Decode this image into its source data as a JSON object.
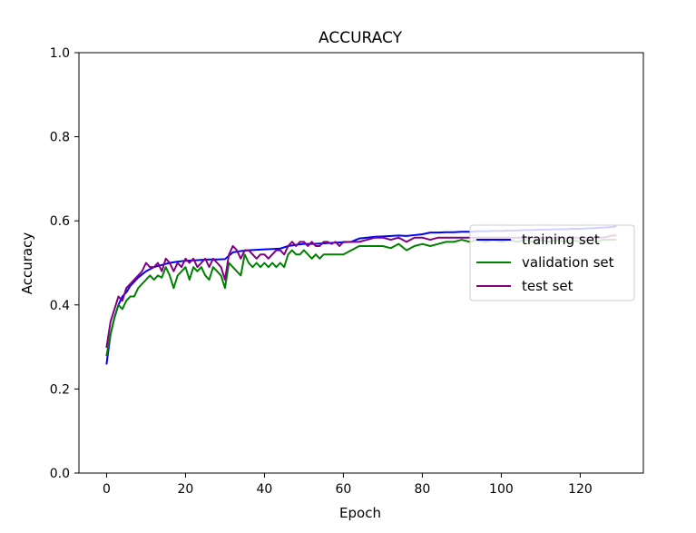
{
  "chart_data": {
    "type": "line",
    "title": "ACCURACY",
    "xlabel": "Epoch",
    "ylabel": "Accuracy",
    "xlim": [
      -7,
      136
    ],
    "ylim": [
      0.0,
      1.0
    ],
    "xticks": [
      0,
      20,
      40,
      60,
      80,
      100,
      120
    ],
    "yticks": [
      0.0,
      0.2,
      0.4,
      0.6,
      0.8,
      1.0
    ],
    "xtick_labels": [
      "0",
      "20",
      "40",
      "60",
      "80",
      "100",
      "120"
    ],
    "ytick_labels": [
      "0.0",
      "0.2",
      "0.4",
      "0.6",
      "0.8",
      "1.0"
    ],
    "grid": false,
    "legend_position": "center-right",
    "series": [
      {
        "name": "training set",
        "color": "#0000ff",
        "x": [
          0,
          1,
          2,
          3,
          4,
          5,
          6,
          8,
          10,
          12,
          14,
          16,
          18,
          20,
          22,
          24,
          26,
          28,
          30,
          32,
          34,
          36,
          38,
          40,
          42,
          44,
          46,
          48,
          50,
          52,
          54,
          56,
          58,
          60,
          62,
          64,
          66,
          68,
          70,
          72,
          74,
          76,
          78,
          80,
          82,
          84,
          86,
          88,
          90,
          92,
          94,
          96,
          98,
          100,
          102,
          104,
          106,
          108,
          110,
          112,
          114,
          116,
          118,
          120,
          122,
          124,
          126,
          128,
          129
        ],
        "y": [
          0.26,
          0.33,
          0.37,
          0.4,
          0.42,
          0.43,
          0.445,
          0.465,
          0.48,
          0.49,
          0.495,
          0.5,
          0.503,
          0.505,
          0.506,
          0.507,
          0.508,
          0.508,
          0.509,
          0.525,
          0.528,
          0.53,
          0.531,
          0.532,
          0.533,
          0.534,
          0.54,
          0.543,
          0.545,
          0.545,
          0.546,
          0.547,
          0.548,
          0.549,
          0.55,
          0.558,
          0.56,
          0.562,
          0.563,
          0.564,
          0.565,
          0.564,
          0.566,
          0.568,
          0.572,
          0.572,
          0.573,
          0.573,
          0.574,
          0.574,
          0.575,
          0.575,
          0.576,
          0.576,
          0.577,
          0.577,
          0.578,
          0.578,
          0.579,
          0.579,
          0.58,
          0.58,
          0.581,
          0.581,
          0.582,
          0.583,
          0.584,
          0.585,
          0.587
        ]
      },
      {
        "name": "validation set",
        "color": "#008000",
        "x": [
          0,
          1,
          2,
          3,
          4,
          5,
          6,
          7,
          8,
          9,
          10,
          11,
          12,
          13,
          14,
          15,
          16,
          17,
          18,
          19,
          20,
          21,
          22,
          23,
          24,
          25,
          26,
          27,
          28,
          29,
          30,
          31,
          32,
          33,
          34,
          35,
          36,
          37,
          38,
          39,
          40,
          41,
          42,
          43,
          44,
          45,
          46,
          47,
          48,
          49,
          50,
          51,
          52,
          53,
          54,
          55,
          56,
          57,
          58,
          59,
          60,
          62,
          64,
          66,
          68,
          70,
          72,
          74,
          76,
          78,
          80,
          82,
          84,
          86,
          88,
          90,
          92,
          94,
          96,
          98,
          100,
          102,
          104,
          106,
          108,
          110,
          112,
          114,
          116,
          118,
          120,
          122,
          124,
          126,
          128,
          129
        ],
        "y": [
          0.28,
          0.33,
          0.37,
          0.4,
          0.39,
          0.41,
          0.42,
          0.42,
          0.44,
          0.45,
          0.46,
          0.47,
          0.46,
          0.47,
          0.465,
          0.49,
          0.47,
          0.44,
          0.47,
          0.48,
          0.49,
          0.46,
          0.49,
          0.48,
          0.49,
          0.47,
          0.46,
          0.49,
          0.48,
          0.47,
          0.44,
          0.5,
          0.49,
          0.48,
          0.47,
          0.52,
          0.5,
          0.49,
          0.5,
          0.49,
          0.5,
          0.49,
          0.5,
          0.49,
          0.5,
          0.49,
          0.52,
          0.53,
          0.52,
          0.52,
          0.53,
          0.52,
          0.51,
          0.52,
          0.51,
          0.52,
          0.52,
          0.52,
          0.52,
          0.52,
          0.52,
          0.53,
          0.54,
          0.54,
          0.54,
          0.54,
          0.535,
          0.545,
          0.53,
          0.54,
          0.545,
          0.54,
          0.545,
          0.55,
          0.55,
          0.555,
          0.55,
          0.555,
          0.55,
          0.555,
          0.55,
          0.555,
          0.55,
          0.555,
          0.55,
          0.555,
          0.55,
          0.555,
          0.55,
          0.555,
          0.55,
          0.555,
          0.55,
          0.555,
          0.555,
          0.555
        ]
      },
      {
        "name": "test set",
        "color": "#800080",
        "x": [
          0,
          1,
          2,
          3,
          4,
          5,
          6,
          7,
          8,
          9,
          10,
          11,
          12,
          13,
          14,
          15,
          16,
          17,
          18,
          19,
          20,
          21,
          22,
          23,
          24,
          25,
          26,
          27,
          28,
          29,
          30,
          31,
          32,
          33,
          34,
          35,
          36,
          37,
          38,
          39,
          40,
          41,
          42,
          43,
          44,
          45,
          46,
          47,
          48,
          49,
          50,
          51,
          52,
          53,
          54,
          55,
          56,
          57,
          58,
          59,
          60,
          62,
          64,
          66,
          68,
          70,
          72,
          74,
          76,
          78,
          80,
          82,
          84,
          86,
          88,
          90,
          92,
          94,
          96,
          98,
          100,
          102,
          104,
          106,
          108,
          110,
          112,
          114,
          116,
          118,
          120,
          122,
          124,
          126,
          128,
          129
        ],
        "y": [
          0.3,
          0.36,
          0.39,
          0.42,
          0.41,
          0.44,
          0.45,
          0.46,
          0.47,
          0.48,
          0.5,
          0.49,
          0.49,
          0.5,
          0.48,
          0.51,
          0.5,
          0.48,
          0.5,
          0.49,
          0.51,
          0.5,
          0.51,
          0.49,
          0.5,
          0.51,
          0.49,
          0.51,
          0.5,
          0.49,
          0.46,
          0.52,
          0.54,
          0.53,
          0.51,
          0.53,
          0.53,
          0.52,
          0.51,
          0.52,
          0.52,
          0.51,
          0.52,
          0.53,
          0.53,
          0.52,
          0.54,
          0.55,
          0.54,
          0.55,
          0.55,
          0.54,
          0.55,
          0.54,
          0.54,
          0.55,
          0.55,
          0.545,
          0.55,
          0.54,
          0.55,
          0.55,
          0.55,
          0.555,
          0.56,
          0.56,
          0.555,
          0.56,
          0.55,
          0.56,
          0.56,
          0.555,
          0.56,
          0.56,
          0.56,
          0.56,
          0.56,
          0.56,
          0.56,
          0.56,
          0.56,
          0.56,
          0.56,
          0.56,
          0.56,
          0.56,
          0.56,
          0.56,
          0.56,
          0.56,
          0.56,
          0.56,
          0.56,
          0.56,
          0.565,
          0.565
        ]
      }
    ]
  }
}
